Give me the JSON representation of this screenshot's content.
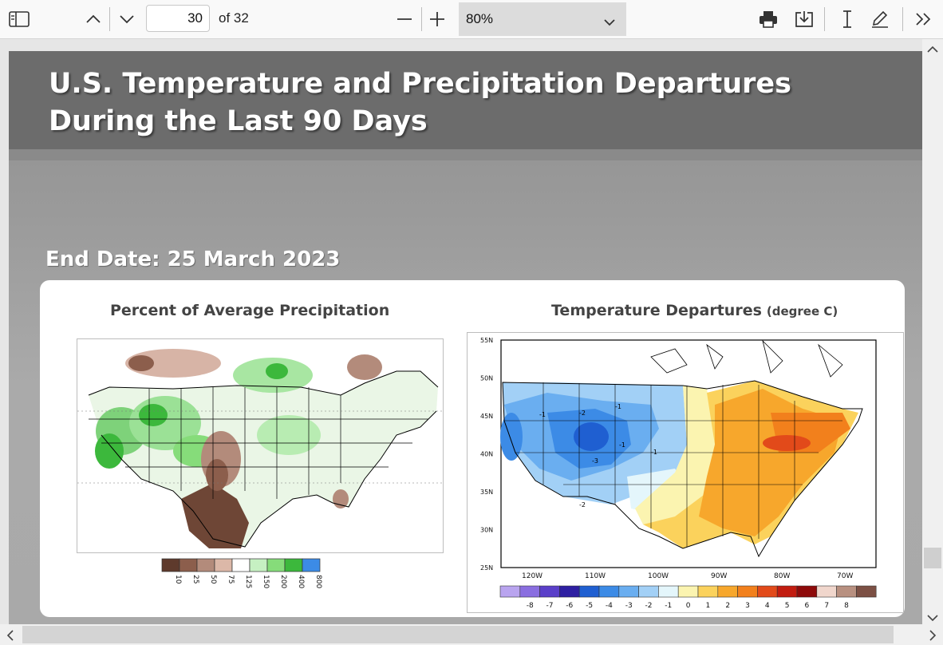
{
  "toolbar": {
    "current_page": "30",
    "page_of": "of 32",
    "zoom": "80%",
    "icons": [
      "sidebar-toggle-icon",
      "chevron-up-icon",
      "chevron-down-icon",
      "minus-icon",
      "plus-icon",
      "dropdown-chevron-icon",
      "print-icon",
      "save-icon",
      "text-cursor-icon",
      "draw-icon",
      "more-icon"
    ]
  },
  "slide": {
    "title": "U.S. Temperature and Precipitation Departures During the Last 90 Days",
    "end_date": "End Date:  25 March 2023"
  },
  "precip_map": {
    "title": "Percent of Average Precipitation",
    "legend": {
      "labels": [
        "10",
        "25",
        "50",
        "75",
        "125",
        "150",
        "200",
        "400",
        "800"
      ],
      "colors": [
        "#5e3a2c",
        "#8c5e4c",
        "#b38b7b",
        "#dcb8a8",
        "#ffffff",
        "#c6f0c2",
        "#86dc7a",
        "#3cb83c",
        "#3c8be6"
      ]
    }
  },
  "temp_map": {
    "title": "Temperature Departures",
    "subtitle": "(degree C)",
    "lat_labels": [
      "55N",
      "50N",
      "45N",
      "40N",
      "35N",
      "30N",
      "25N"
    ],
    "lon_labels": [
      "120W",
      "110W",
      "100W",
      "90W",
      "80W",
      "70W"
    ],
    "contour_labels": [
      "-1",
      "-2",
      "-1",
      "-1",
      "-3",
      "-2",
      "-1"
    ],
    "legend": {
      "labels": [
        "-8",
        "-7",
        "-6",
        "-5",
        "-4",
        "-3",
        "-2",
        "-1",
        "0",
        "1",
        "2",
        "3",
        "4",
        "5",
        "6",
        "7",
        "8"
      ],
      "colors": [
        "#b9a4ef",
        "#8a6ee0",
        "#5a3fc9",
        "#2e1fa2",
        "#1f5fd1",
        "#3c8be6",
        "#6aaef0",
        "#a2d0f6",
        "#e4f6fb",
        "#fbf4b0",
        "#fbd25c",
        "#f7a72c",
        "#f2801c",
        "#e24a1a",
        "#c21c10",
        "#8e0a0a",
        "#f0d6cc",
        "#b89080",
        "#7c5044"
      ]
    }
  }
}
